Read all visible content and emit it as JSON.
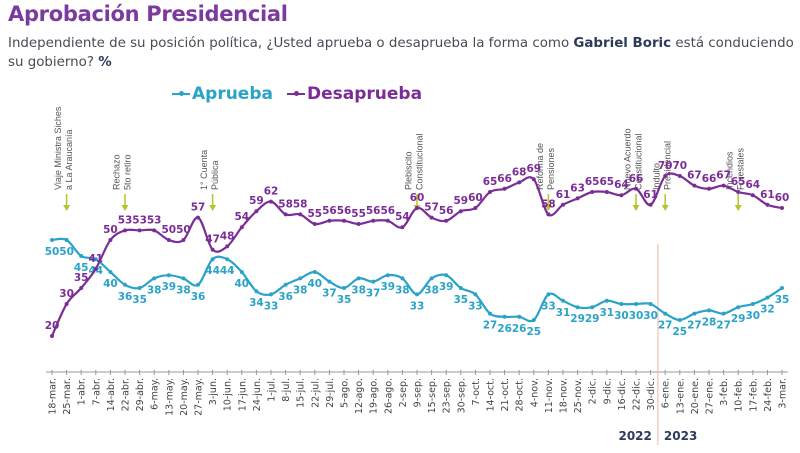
{
  "header": {
    "title": "Aprobación Presidencial",
    "subtitle_pre": "Independiente de su posición política, ¿Usted aprueba o desaprueba la forma como ",
    "subtitle_bold": "Gabriel Boric",
    "subtitle_post": " está conduciendo su gobierno? ",
    "subtitle_unit": "%"
  },
  "chart_data": {
    "type": "line",
    "title": "Aprobación Presidencial",
    "xlabel": "",
    "ylabel": "%",
    "ylim": [
      15,
      75
    ],
    "grid": false,
    "legend_position": "top-left",
    "x": [
      "18-mar.",
      "25-mar.",
      "1-abr.",
      "7-abr.",
      "14-abr.",
      "22-abr.",
      "29-abr.",
      "6-may.",
      "13-may.",
      "20-may.",
      "27-may.",
      "3-jun.",
      "10-jun.",
      "17-jun.",
      "24-jun.",
      "1-jul.",
      "8-jul.",
      "15-jul.",
      "22-jul.",
      "29-jul.",
      "5-ago.",
      "12-ago.",
      "19-ago.",
      "26-ago.",
      "2-sep.",
      "9-sep.",
      "15-sep.",
      "23-sep.",
      "30-sep.",
      "7-oct.",
      "14-oct.",
      "21-oct.",
      "28-oct.",
      "4-nov.",
      "11-nov.",
      "18-nov.",
      "25-nov.",
      "2-dic.",
      "9-dic.",
      "16-dic.",
      "22-dic.",
      "30-dic.",
      "6-ene.",
      "13-ene.",
      "20-ene.",
      "27-ene.",
      "3-feb.",
      "10-feb.",
      "17-feb.",
      "24-feb.",
      "3-mar."
    ],
    "series": [
      {
        "name": "Aprueba",
        "color": "#2aa3c9",
        "values": [
          50,
          50,
          45,
          44,
          40,
          36,
          35,
          38,
          39,
          38,
          36,
          44,
          44,
          40,
          34,
          33,
          36,
          38,
          40,
          37,
          35,
          38,
          37,
          39,
          38,
          33,
          38,
          39,
          35,
          33,
          27,
          26,
          26,
          25,
          33,
          31,
          29,
          29,
          31,
          30,
          30,
          30,
          27,
          25,
          27,
          28,
          27,
          29,
          30,
          32,
          35
        ]
      },
      {
        "name": "Desaprueba",
        "color": "#7b2d97",
        "values": [
          20,
          30,
          35,
          41,
          50,
          53,
          53,
          53,
          50,
          50,
          57,
          47,
          48,
          54,
          59,
          62,
          58,
          58,
          55,
          56,
          56,
          55,
          56,
          56,
          54,
          60,
          57,
          56,
          59,
          60,
          65,
          66,
          68,
          69,
          58,
          61,
          63,
          65,
          65,
          64,
          66,
          61,
          70,
          70,
          67,
          66,
          67,
          65,
          64,
          61,
          60
        ]
      }
    ],
    "annotations": [
      {
        "index": 1,
        "lines": [
          "Viaje Ministra Siches",
          "a La Araucanía"
        ]
      },
      {
        "index": 5,
        "lines": [
          "Rechazo",
          "5to retiro"
        ]
      },
      {
        "index": 11,
        "lines": [
          "1° Cuenta",
          "Pública"
        ]
      },
      {
        "index": 25,
        "lines": [
          "Plebiscito",
          "Constitucional"
        ]
      },
      {
        "index": 34,
        "lines": [
          "Reforma de",
          "Pensiones"
        ]
      },
      {
        "index": 40,
        "lines": [
          "Nuevo Acuerdo",
          "Constitucional"
        ]
      },
      {
        "index": 42,
        "lines": [
          "Indulto",
          "Presidencial"
        ]
      },
      {
        "index": 47,
        "lines": [
          "Incendios",
          "Forestales"
        ]
      }
    ],
    "year_divider_after_index": 41,
    "years": [
      "2022",
      "2023"
    ],
    "annotation_arrow_color": "#b5c42a"
  }
}
